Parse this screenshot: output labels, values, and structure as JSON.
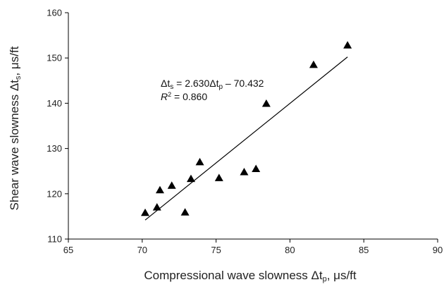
{
  "chart_data": {
    "type": "scatter",
    "xlabel": "Compressional wave slowness Δt",
    "xlabel_sub": "p",
    "xlabel_unit": ", μs/ft",
    "ylabel": "Shear wave slowness Δt",
    "ylabel_sub": "s",
    "ylabel_unit": ", μs/ft",
    "xlim": [
      65,
      90
    ],
    "ylim": [
      110,
      160
    ],
    "x_ticks": [
      "65",
      "70",
      "75",
      "80",
      "85",
      "90"
    ],
    "y_ticks": [
      "110",
      "120",
      "130",
      "140",
      "150",
      "160"
    ],
    "x_tick_values": [
      65,
      70,
      75,
      80,
      85,
      90
    ],
    "y_tick_values": [
      110,
      120,
      130,
      140,
      150,
      160
    ],
    "grid": false,
    "marker": "triangle",
    "marker_color": "#000000",
    "points": [
      {
        "x": 70.2,
        "y": 115.8
      },
      {
        "x": 71.0,
        "y": 117.0
      },
      {
        "x": 71.2,
        "y": 120.8
      },
      {
        "x": 72.0,
        "y": 121.8
      },
      {
        "x": 72.9,
        "y": 115.9
      },
      {
        "x": 73.3,
        "y": 123.3
      },
      {
        "x": 73.9,
        "y": 127.0
      },
      {
        "x": 75.2,
        "y": 123.5
      },
      {
        "x": 76.9,
        "y": 124.8
      },
      {
        "x": 77.7,
        "y": 125.5
      },
      {
        "x": 78.4,
        "y": 139.9
      },
      {
        "x": 81.6,
        "y": 148.5
      },
      {
        "x": 83.9,
        "y": 152.8
      }
    ],
    "trendline": {
      "x": [
        70.2,
        83.9
      ],
      "slope": 2.63,
      "intercept": -70.432
    },
    "annotation": {
      "eq_prefix": "Δt",
      "eq_sub1": "s",
      "eq_mid": " = 2.630Δt",
      "eq_sub2": "p",
      "eq_suffix": " – 70.432",
      "r2_label": "R",
      "r2_sup": "2",
      "r2_value": " = 0.860"
    }
  }
}
